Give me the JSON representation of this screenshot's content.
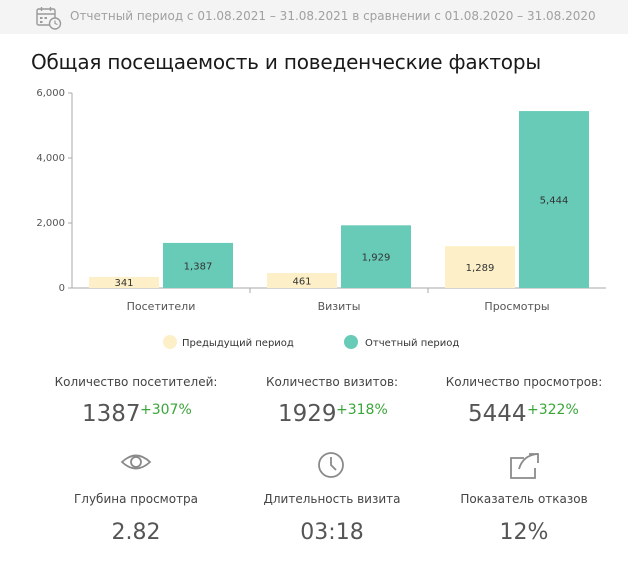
{
  "header": {
    "period_text": "Отчетный период с 01.08.2021 – 31.08.2021 в сравнении с 01.08.2020 – 31.08.2020",
    "icon": "calendar-clock-icon"
  },
  "page_title": "Общая посещаемость и поведенческие факторы",
  "colors": {
    "previous": "#fdf0c8",
    "current": "#68cbb7",
    "positive": "#3aa63a"
  },
  "chart_data": {
    "type": "bar",
    "categories": [
      "Посетители",
      "Визиты",
      "Просмотры"
    ],
    "series": [
      {
        "name": "Предыдущий период",
        "values": [
          341,
          461,
          1289
        ],
        "labels": [
          "341",
          "461",
          "1,289"
        ]
      },
      {
        "name": "Отчетный период",
        "values": [
          1387,
          1929,
          5444
        ],
        "labels": [
          "1,387",
          "1,929",
          "5,444"
        ]
      }
    ],
    "yticks": [
      0,
      2000,
      4000,
      6000
    ],
    "ytick_labels": [
      "0",
      "2,000",
      "4,000",
      "6,000"
    ],
    "ylim": [
      0,
      6000
    ],
    "title": "",
    "xlabel": "",
    "ylabel": "",
    "legend_position": "bottom-center",
    "grid": false
  },
  "stats": [
    {
      "label": "Количество посетителей:",
      "value": "1387",
      "change": "+307%"
    },
    {
      "label": "Количество визитов:",
      "value": "1929",
      "change": "+318%"
    },
    {
      "label": "Количество просмотров:",
      "value": "5444",
      "change": "+322%"
    }
  ],
  "metrics": [
    {
      "icon": "eye-icon",
      "label": "Глубина просмотра",
      "value": "2.82"
    },
    {
      "icon": "clock-icon",
      "label": "Длительность визита",
      "value": "03:18"
    },
    {
      "icon": "share-arrow-icon",
      "label": "Показатель отказов",
      "value": "12%"
    }
  ]
}
